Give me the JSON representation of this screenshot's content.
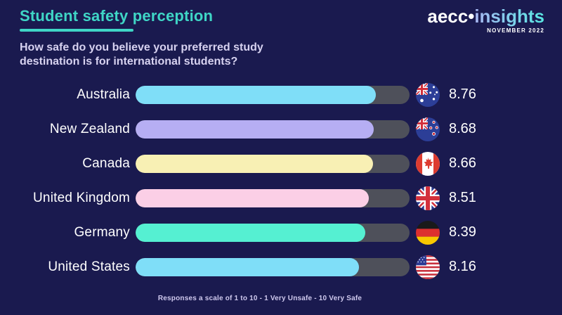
{
  "page": {
    "background_color": "#1a1a4f",
    "accent_color": "#3fd6c6"
  },
  "header": {
    "title": "Student safety perception",
    "subtitle": "How safe do you believe your preferred study destination is for international students?",
    "logo": {
      "brand": "aecc",
      "dot": "•",
      "product": "insights",
      "issue": "NOVEMBER 2022"
    }
  },
  "footer": {
    "note": "Responses a scale of 1 to 10 - 1 Very Unsafe - 10 Very Safe"
  },
  "chart_data": {
    "type": "bar",
    "orientation": "horizontal",
    "title": "Student safety perception",
    "question": "How safe do you believe your preferred study destination is for international students?",
    "scale_note": "Responses a scale of 1 to 10 - 1 Very Unsafe - 10 Very Safe",
    "xlim": [
      0,
      10
    ],
    "categories": [
      "Australia",
      "New Zealand",
      "Canada",
      "United Kingdom",
      "Germany",
      "United States"
    ],
    "values": [
      8.76,
      8.68,
      8.66,
      8.51,
      8.39,
      8.16
    ],
    "value_labels": [
      "8.76",
      "8.68",
      "8.66",
      "8.51",
      "8.39",
      "8.16"
    ],
    "bar_colors": [
      "#7fdef8",
      "#b6aef3",
      "#f8f0b4",
      "#fbcfe6",
      "#55f0d2",
      "#7fdef8"
    ],
    "track_color": "#4e505a",
    "flag_icons": [
      "australia-flag-icon",
      "new-zealand-flag-icon",
      "canada-flag-icon",
      "united-kingdom-flag-icon",
      "germany-flag-icon",
      "united-states-flag-icon"
    ],
    "legend": "none",
    "grid": "off"
  }
}
